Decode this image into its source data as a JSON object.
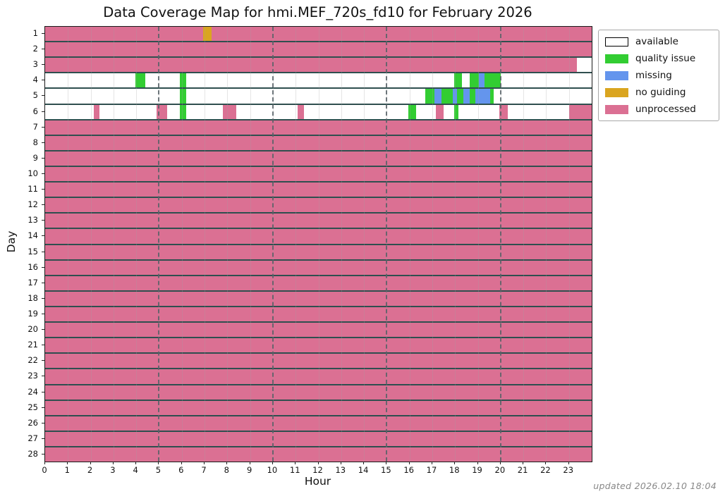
{
  "title": "Data Coverage Map for hmi.MEF_720s_fd10 for February 2026",
  "xlabel": "Hour",
  "ylabel": "Day",
  "footer": "updated 2026.02.10 18:04",
  "colors": {
    "available": "#ffffff",
    "quality issue": "#32CD32",
    "missing": "#6495ED",
    "no guiding": "#DAA520",
    "unprocessed": "#DB7093",
    "row_border": "#2F4F4F",
    "dashed_grid": "#5f686e"
  },
  "legend": [
    {
      "label": "available"
    },
    {
      "label": "quality issue"
    },
    {
      "label": "missing"
    },
    {
      "label": "no guiding"
    },
    {
      "label": "unprocessed"
    }
  ],
  "chart_data": {
    "type": "heatmap",
    "xlim": [
      0,
      24
    ],
    "x_ticks": [
      0,
      1,
      2,
      3,
      4,
      5,
      6,
      7,
      8,
      9,
      10,
      11,
      12,
      13,
      14,
      15,
      16,
      17,
      18,
      19,
      20,
      21,
      22,
      23
    ],
    "dashed_gridlines": [
      5,
      10,
      15,
      20
    ],
    "solid_gridlines_every_hour": true,
    "statuses": [
      "available",
      "quality issue",
      "missing",
      "no guiding",
      "unprocessed"
    ],
    "rows": [
      {
        "day": 1,
        "base": "unprocessed",
        "segments": [
          {
            "status": "no guiding",
            "start": 6.95,
            "end": 7.3
          }
        ]
      },
      {
        "day": 2,
        "base": "unprocessed",
        "segments": []
      },
      {
        "day": 3,
        "base": "unprocessed",
        "segments": [
          {
            "status": "available",
            "start": 23.35,
            "end": 24
          }
        ]
      },
      {
        "day": 4,
        "base": "available",
        "segments": [
          {
            "status": "quality issue",
            "start": 3.95,
            "end": 4.4
          },
          {
            "status": "quality issue",
            "start": 5.9,
            "end": 6.2
          },
          {
            "status": "quality issue",
            "start": 17.95,
            "end": 18.3
          },
          {
            "status": "quality issue",
            "start": 18.65,
            "end": 19.05
          },
          {
            "status": "missing",
            "start": 19.05,
            "end": 19.3
          },
          {
            "status": "quality issue",
            "start": 19.3,
            "end": 20.0
          }
        ]
      },
      {
        "day": 5,
        "base": "available",
        "segments": [
          {
            "status": "quality issue",
            "start": 5.9,
            "end": 6.2
          },
          {
            "status": "quality issue",
            "start": 16.7,
            "end": 17.1
          },
          {
            "status": "missing",
            "start": 17.1,
            "end": 17.4
          },
          {
            "status": "quality issue",
            "start": 17.4,
            "end": 17.9
          },
          {
            "status": "missing",
            "start": 17.9,
            "end": 18.1
          },
          {
            "status": "quality issue",
            "start": 18.1,
            "end": 18.35
          },
          {
            "status": "missing",
            "start": 18.35,
            "end": 18.65
          },
          {
            "status": "quality issue",
            "start": 18.65,
            "end": 18.9
          },
          {
            "status": "missing",
            "start": 18.9,
            "end": 19.55
          },
          {
            "status": "quality issue",
            "start": 19.55,
            "end": 19.7
          }
        ]
      },
      {
        "day": 6,
        "base": "available",
        "segments": [
          {
            "status": "unprocessed",
            "start": 2.15,
            "end": 2.4
          },
          {
            "status": "unprocessed",
            "start": 4.9,
            "end": 5.35
          },
          {
            "status": "quality issue",
            "start": 5.9,
            "end": 6.2
          },
          {
            "status": "unprocessed",
            "start": 7.8,
            "end": 8.4
          },
          {
            "status": "unprocessed",
            "start": 11.1,
            "end": 11.35
          },
          {
            "status": "quality issue",
            "start": 15.95,
            "end": 16.3
          },
          {
            "status": "unprocessed",
            "start": 17.15,
            "end": 17.5
          },
          {
            "status": "quality issue",
            "start": 17.95,
            "end": 18.15
          },
          {
            "status": "unprocessed",
            "start": 19.95,
            "end": 20.3
          },
          {
            "status": "unprocessed",
            "start": 23.0,
            "end": 24.0
          }
        ]
      },
      {
        "day": 7,
        "base": "unprocessed",
        "segments": []
      },
      {
        "day": 8,
        "base": "unprocessed",
        "segments": []
      },
      {
        "day": 9,
        "base": "unprocessed",
        "segments": []
      },
      {
        "day": 10,
        "base": "unprocessed",
        "segments": []
      },
      {
        "day": 11,
        "base": "unprocessed",
        "segments": []
      },
      {
        "day": 12,
        "base": "unprocessed",
        "segments": []
      },
      {
        "day": 13,
        "base": "unprocessed",
        "segments": []
      },
      {
        "day": 14,
        "base": "unprocessed",
        "segments": []
      },
      {
        "day": 15,
        "base": "unprocessed",
        "segments": []
      },
      {
        "day": 16,
        "base": "unprocessed",
        "segments": []
      },
      {
        "day": 17,
        "base": "unprocessed",
        "segments": []
      },
      {
        "day": 18,
        "base": "unprocessed",
        "segments": []
      },
      {
        "day": 19,
        "base": "unprocessed",
        "segments": []
      },
      {
        "day": 20,
        "base": "unprocessed",
        "segments": []
      },
      {
        "day": 21,
        "base": "unprocessed",
        "segments": []
      },
      {
        "day": 22,
        "base": "unprocessed",
        "segments": []
      },
      {
        "day": 23,
        "base": "unprocessed",
        "segments": []
      },
      {
        "day": 24,
        "base": "unprocessed",
        "segments": []
      },
      {
        "day": 25,
        "base": "unprocessed",
        "segments": []
      },
      {
        "day": 26,
        "base": "unprocessed",
        "segments": []
      },
      {
        "day": 27,
        "base": "unprocessed",
        "segments": []
      },
      {
        "day": 28,
        "base": "unprocessed",
        "segments": []
      }
    ]
  }
}
